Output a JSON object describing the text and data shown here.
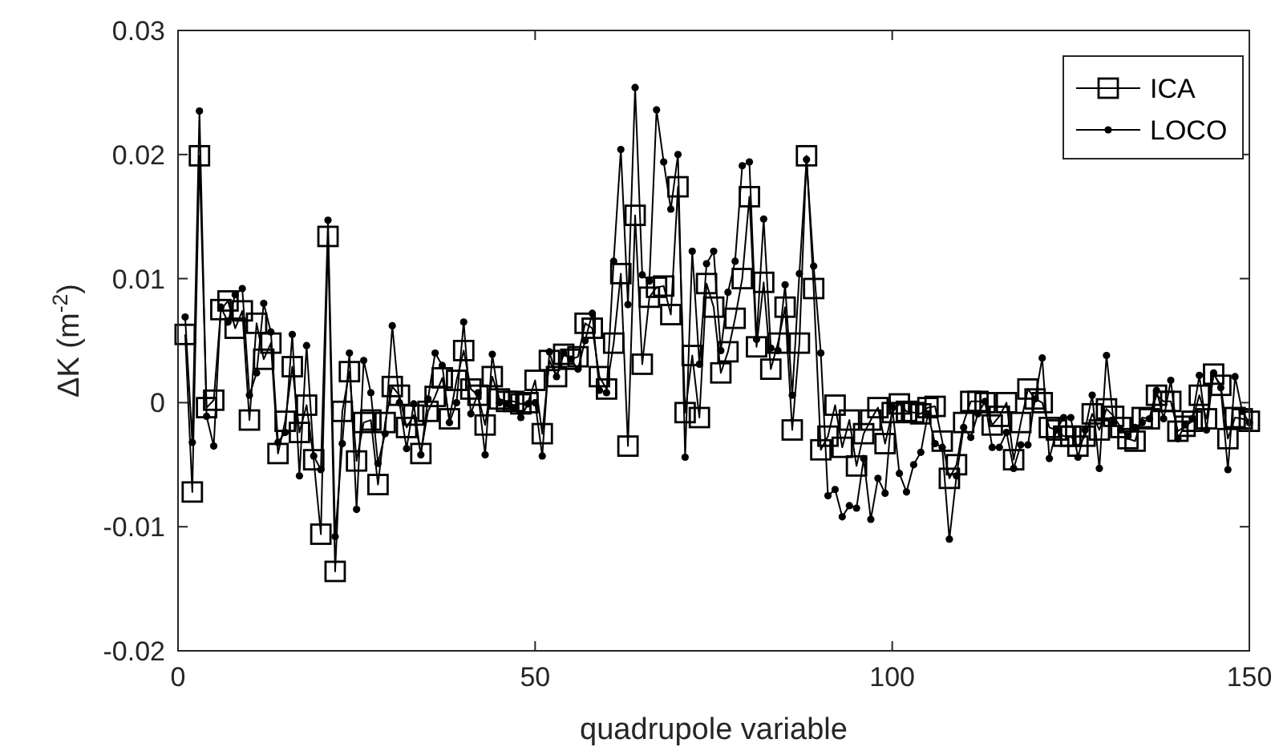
{
  "chart_data": {
    "type": "line",
    "xlabel": "quadrupole variable",
    "ylabel": "ΔK (m$^{-2}$)",
    "x": [
      1,
      2,
      3,
      4,
      5,
      6,
      7,
      8,
      9,
      10,
      11,
      12,
      13,
      14,
      15,
      16,
      17,
      18,
      19,
      20,
      21,
      22,
      23,
      24,
      25,
      26,
      27,
      28,
      29,
      30,
      31,
      32,
      33,
      34,
      35,
      36,
      37,
      38,
      39,
      40,
      41,
      42,
      43,
      44,
      45,
      46,
      47,
      48,
      49,
      50,
      51,
      52,
      53,
      54,
      55,
      56,
      57,
      58,
      59,
      60,
      61,
      62,
      63,
      64,
      65,
      66,
      67,
      68,
      69,
      70,
      71,
      72,
      73,
      74,
      75,
      76,
      77,
      78,
      79,
      80,
      81,
      82,
      83,
      84,
      85,
      86,
      87,
      88,
      89,
      90,
      91,
      92,
      93,
      94,
      95,
      96,
      97,
      98,
      99,
      100,
      101,
      102,
      103,
      104,
      105,
      106,
      107,
      108,
      109,
      110,
      111,
      112,
      113,
      114,
      115,
      116,
      117,
      118,
      119,
      120,
      121,
      122,
      123,
      124,
      125,
      126,
      127,
      128,
      129,
      130,
      131,
      132,
      133,
      134,
      135,
      136,
      137,
      138,
      139,
      140,
      141,
      142,
      143,
      144,
      145,
      146,
      147,
      148,
      149,
      150
    ],
    "series": [
      {
        "name": "ICA",
        "color": "#000000",
        "marker": "square",
        "values": [
          0.0055,
          -0.0072,
          0.0199,
          -0.0004,
          0.0002,
          0.0075,
          0.0082,
          0.006,
          0.0074,
          -0.0014,
          0.0064,
          0.0035,
          0.0048,
          -0.0041,
          -0.0015,
          0.0029,
          -0.0024,
          -0.0002,
          -0.0046,
          -0.0106,
          0.0134,
          -0.0136,
          -0.0007,
          0.0025,
          -0.0047,
          -0.0016,
          -0.0014,
          -0.0066,
          -0.0016,
          0.0013,
          0.0006,
          -0.002,
          -0.001,
          -0.0041,
          -0.0007,
          0.0005,
          0.002,
          -0.0013,
          0.0018,
          0.0042,
          0.0011,
          0.0006,
          -0.0018,
          0.0021,
          0.0003,
          0.0001,
          0.0001,
          -0.0001,
          0,
          0.0018,
          -0.0025,
          0.0034,
          0.0021,
          0.0039,
          0.0035,
          0.0037,
          0.0064,
          0.006,
          0.0021,
          0.0011,
          0.0048,
          0.0104,
          -0.0035,
          0.0151,
          0.0031,
          0.0085,
          0.0093,
          0.0094,
          0.0071,
          0.0174,
          -0.0008,
          0.0038,
          -0.0012,
          0.0096,
          0.0077,
          0.0024,
          0.0041,
          0.0068,
          0.01,
          0.0166,
          0.0045,
          0.0097,
          0.0027,
          0.0048,
          0.0077,
          -0.0022,
          0.0048,
          0.0199,
          0.0092,
          -0.0038,
          -0.0027,
          -0.0002,
          -0.0036,
          -0.0014,
          -0.0051,
          -0.0025,
          -0.0014,
          -0.0004,
          -0.0033,
          -0.0008,
          -0.0001,
          -0.0007,
          -0.0008,
          -0.0009,
          -0.0004,
          -0.0003,
          -0.0031,
          -0.0061,
          -0.005,
          -0.0016,
          0.0001,
          0.0001,
          0,
          -0.0018,
          -0.0011,
          0,
          -0.0046,
          -0.0016,
          0.0011,
          0.0003,
          0,
          -0.002,
          -0.0022,
          -0.0027,
          -0.0027,
          -0.0035,
          -0.0027,
          -0.0009,
          -0.0022,
          -0.0005,
          -0.0011,
          -0.002,
          -0.0029,
          -0.0031,
          -0.0012,
          -0.0013,
          0.0006,
          0.0001,
          0.0001,
          -0.0023,
          -0.0019,
          -0.0015,
          0.0006,
          -0.0013,
          0.0023,
          0.0014,
          -0.0029,
          -0.0012,
          -0.0013,
          -0.0015
        ]
      },
      {
        "name": "LOCO",
        "color": "#000000",
        "marker": "circle",
        "values": [
          0.0069,
          -0.0032,
          0.0235,
          -0.0011,
          -0.0035,
          0.0077,
          0.0065,
          0.0087,
          0.0092,
          0.0006,
          0.0024,
          0.008,
          0.0057,
          -0.0032,
          -0.0024,
          0.0055,
          -0.0059,
          0.0046,
          -0.0043,
          -0.0054,
          0.0147,
          -0.0108,
          -0.0033,
          0.004,
          -0.0086,
          0.0034,
          0.0008,
          -0.0049,
          -0.0025,
          0.0062,
          0,
          -0.0037,
          -0.0001,
          -0.0042,
          0.0003,
          0.004,
          0.003,
          -0.0016,
          0,
          0.0065,
          -0.0009,
          0.0008,
          -0.0042,
          0.0039,
          0,
          -0.0001,
          -0.0004,
          -0.0012,
          -0.0001,
          0,
          -0.0043,
          0.0041,
          0.0021,
          0.004,
          0.0035,
          0.0027,
          0.005,
          0.0072,
          0.001,
          0.0008,
          0.0114,
          0.0204,
          0.0079,
          0.0254,
          0.0103,
          0.0098,
          0.0236,
          0.0194,
          0.0156,
          0.02,
          -0.0044,
          0.0122,
          0.0031,
          0.0112,
          0.0122,
          0.0042,
          0.0089,
          0.0114,
          0.0191,
          0.0194,
          0.0051,
          0.0148,
          0.0044,
          0.0042,
          0.0095,
          0.0006,
          0.0104,
          0.0196,
          0.011,
          0.004,
          -0.0075,
          -0.007,
          -0.0092,
          -0.0083,
          -0.0085,
          -0.0045,
          -0.0094,
          -0.0061,
          -0.0073,
          -0.0003,
          -0.0057,
          -0.0072,
          -0.005,
          -0.004,
          -0.0009,
          -0.0033,
          -0.0036,
          -0.011,
          -0.0059,
          -0.002,
          -0.0028,
          -0.0009,
          0.0001,
          -0.0036,
          -0.0036,
          -0.0024,
          -0.0053,
          -0.0034,
          -0.0034,
          0.0003,
          0.0036,
          -0.0045,
          -0.0022,
          -0.0012,
          -0.0012,
          -0.0044,
          -0.0022,
          0.0006,
          -0.0053,
          0.0038,
          -0.0016,
          -0.0022,
          -0.0027,
          -0.002,
          -0.0016,
          -0.0013,
          0.001,
          -0.0013,
          0.0018,
          -0.0029,
          -0.0018,
          -0.0013,
          0.0022,
          -0.0022,
          0.0024,
          0.0012,
          -0.0054,
          0.0021,
          -0.0007,
          -0.0016
        ]
      }
    ],
    "xlim": [
      0,
      150
    ],
    "xticks": [
      0,
      50,
      100,
      150
    ],
    "ylim": [
      -0.02,
      0.03
    ],
    "yticks": [
      -0.02,
      -0.01,
      0,
      0.01,
      0.02,
      0.03
    ],
    "grid": false,
    "legend": "top right",
    "line_style": "solid"
  }
}
